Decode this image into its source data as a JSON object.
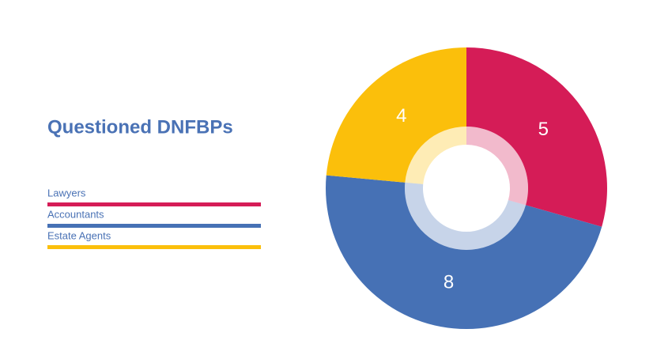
{
  "chart_data": {
    "type": "pie",
    "title": "Questioned DNFBPs",
    "categories": [
      "Lawyers",
      "Accountants",
      "Estate Agents"
    ],
    "values": [
      5,
      8,
      4
    ],
    "colors": [
      "#d51c57",
      "#4671b5",
      "#fbbf0b"
    ],
    "donut": true
  }
}
